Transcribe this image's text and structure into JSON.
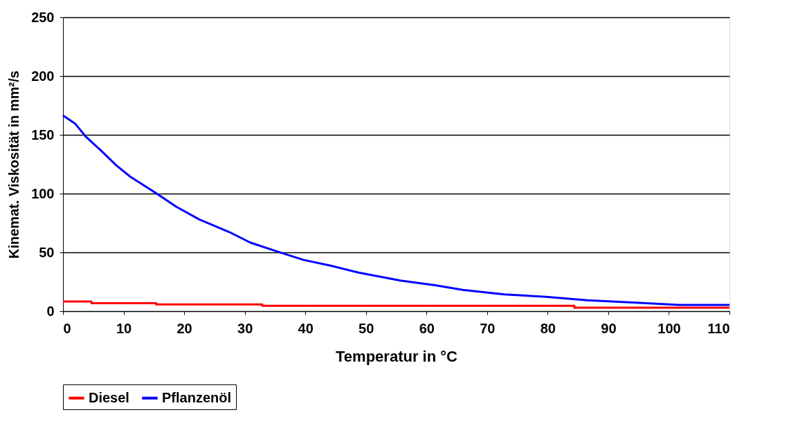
{
  "chart_data": {
    "type": "line",
    "xlabel": "Temperatur in °C",
    "ylabel": "Kinemat. Viskosität in mm²/s",
    "xlim": [
      0,
      110
    ],
    "xticks": [
      0,
      10,
      20,
      30,
      40,
      50,
      60,
      70,
      80,
      90,
      100,
      110
    ],
    "ylim": [
      0,
      250
    ],
    "yticks": [
      0,
      50,
      100,
      150,
      200,
      250
    ],
    "grid": "y",
    "legend": "bottom",
    "marker": "none",
    "line_style": "solid",
    "series": [
      {
        "name": "Diesel",
        "color": "#ff0000",
        "x": [
          0,
          4.7,
          4.7,
          15.4,
          15.4,
          32.9,
          32.9,
          84.4,
          84.4,
          110
        ],
        "values": [
          8.3,
          8.3,
          6.7,
          6.7,
          5.7,
          5.7,
          4.5,
          4.5,
          3,
          3
        ]
      },
      {
        "name": "Pflanzenöl",
        "color": "#0000ff",
        "x": [
          0,
          2,
          3.7,
          6.2,
          8.8,
          11.1,
          15.3,
          18.7,
          22.5,
          27.5,
          30.9,
          35.5,
          39.7,
          44.2,
          48.8,
          55.7,
          61.4,
          66,
          72.8,
          79.7,
          86.5,
          94.1,
          101.7,
          110
        ],
        "values": [
          166.5,
          159.6,
          148.8,
          137,
          124,
          114.4,
          100.6,
          88.8,
          78,
          67.2,
          58.4,
          50.5,
          43.6,
          38.7,
          32.8,
          26,
          22,
          18.1,
          14.2,
          12.2,
          9.2,
          7.3,
          5.3,
          5.3
        ]
      }
    ]
  }
}
